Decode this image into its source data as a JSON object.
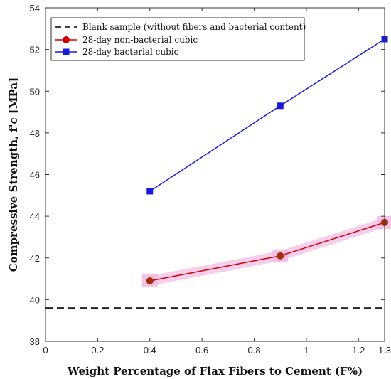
{
  "chart_data": {
    "type": "line",
    "xlabel": "Weight Percentage of Flax Fibers to Cement (F%)",
    "ylabel": "Compressive Strength, f'c [MPa]",
    "xlim": [
      0,
      1.3
    ],
    "ylim": [
      38,
      54
    ],
    "x_ticks": [
      "0",
      "0.2",
      "0.4",
      "0.6",
      "0.8",
      "1",
      "1.2",
      "1.3"
    ],
    "y_ticks": [
      "38",
      "40",
      "42",
      "44",
      "46",
      "48",
      "50",
      "52",
      "54"
    ],
    "grid": false,
    "legend_position": "top-left",
    "reference_line": {
      "name": "Blank sample (without fibers and bacterial content)",
      "y": 39.6,
      "color": "#000000",
      "style": "dashed"
    },
    "series": [
      {
        "name": "28-day non-bacterial cubic",
        "color": "#cc0000",
        "marker_color": "#a0300a",
        "marker": "circle",
        "error_band": true,
        "error_color": "#f4b8e4",
        "x": [
          0.4,
          0.9,
          1.3
        ],
        "values": [
          40.9,
          42.1,
          43.7
        ]
      },
      {
        "name": "28-day bacterial cubic",
        "color": "#1a1ad6",
        "marker_color": "#1a1ad6",
        "marker": "square",
        "x": [
          0.4,
          0.9,
          1.3
        ],
        "values": [
          45.2,
          49.3,
          52.5
        ]
      }
    ]
  }
}
